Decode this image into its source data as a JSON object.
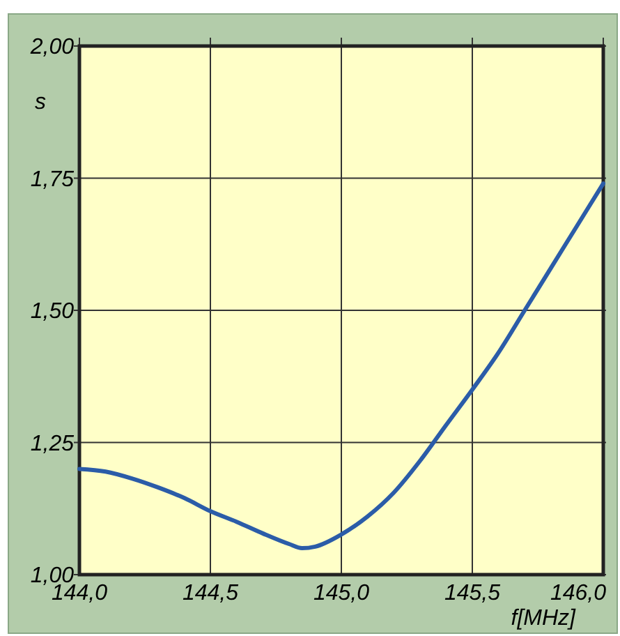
{
  "chart_data": {
    "type": "line",
    "xlabel": "f[MHz]",
    "ylabel": "s",
    "x": [
      144.0,
      144.1,
      144.2,
      144.3,
      144.4,
      144.5,
      144.6,
      144.7,
      144.8,
      144.85,
      144.9,
      145.0,
      145.1,
      145.2,
      145.3,
      145.4,
      145.5,
      145.6,
      145.7,
      145.8,
      145.9,
      146.0
    ],
    "series": [
      {
        "color": "#2b5ca8",
        "values": [
          1.2,
          1.195,
          1.182,
          1.165,
          1.145,
          1.12,
          1.1,
          1.078,
          1.058,
          1.05,
          1.053,
          1.076,
          1.11,
          1.155,
          1.215,
          1.283,
          1.35,
          1.42,
          1.5,
          1.58,
          1.66,
          1.74
        ]
      }
    ],
    "xlim": [
      144.0,
      146.0
    ],
    "ylim": [
      1.0,
      2.0
    ],
    "xticks": [
      {
        "value": 144.0,
        "label": "144,0"
      },
      {
        "value": 144.5,
        "label": "144,5"
      },
      {
        "value": 145.0,
        "label": "145,0"
      },
      {
        "value": 145.5,
        "label": "145,5"
      },
      {
        "value": 146.0,
        "label": "146,0"
      }
    ],
    "yticks": [
      {
        "value": 1.0,
        "label": "1,00"
      },
      {
        "value": 1.25,
        "label": "1,25"
      },
      {
        "value": 1.5,
        "label": "1,50"
      },
      {
        "value": 1.75,
        "label": "1,75"
      },
      {
        "value": 2.0,
        "label": "2,00"
      }
    ],
    "grid": true,
    "marker": "none",
    "line_style": "solid"
  }
}
